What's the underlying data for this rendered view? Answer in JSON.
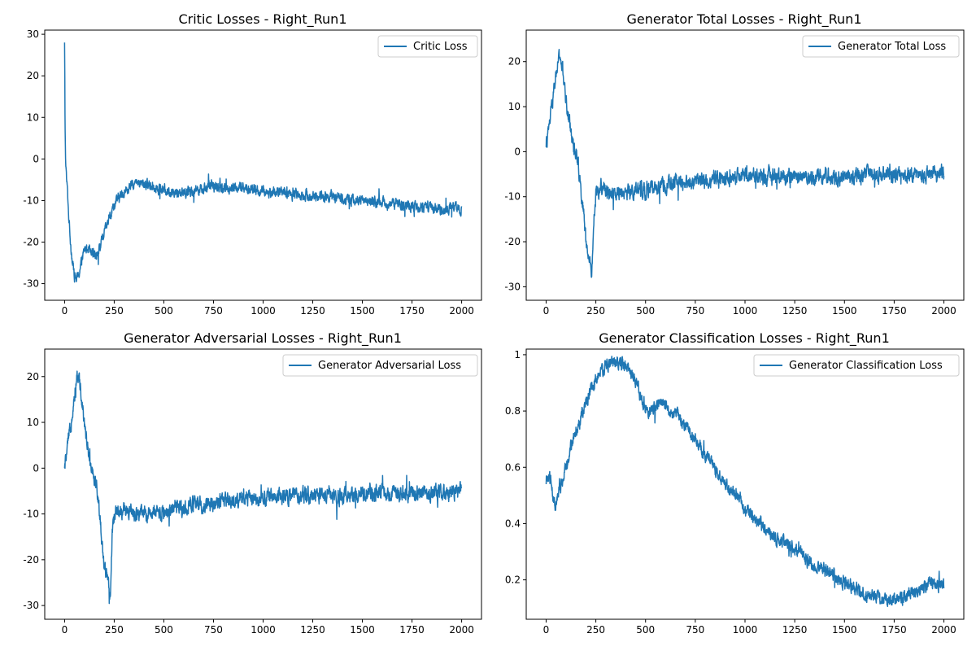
{
  "colors": {
    "series": "#1f77b4",
    "axes": "#000000",
    "legend_border": "#cccccc"
  },
  "chart_data": [
    {
      "type": "line",
      "title": "Critic Losses - Right_Run1",
      "xlabel": "",
      "ylabel": "",
      "xlim": [
        -100,
        2100
      ],
      "ylim": [
        -34,
        31
      ],
      "xticks": [
        0,
        250,
        500,
        750,
        1000,
        1250,
        1500,
        1750,
        2000
      ],
      "yticks": [
        -30,
        -20,
        -10,
        0,
        10,
        20,
        30
      ],
      "grid": false,
      "legend": "top-right",
      "series": [
        {
          "name": "Critic Loss",
          "noise": 1.2,
          "x": [
            0,
            2,
            5,
            10,
            15,
            20,
            30,
            40,
            50,
            60,
            70,
            80,
            90,
            100,
            120,
            140,
            160,
            180,
            200,
            220,
            250,
            280,
            300,
            350,
            400,
            450,
            500,
            550,
            600,
            650,
            700,
            750,
            800,
            850,
            900,
            950,
            1000,
            1050,
            1100,
            1150,
            1200,
            1250,
            1300,
            1350,
            1400,
            1450,
            1500,
            1550,
            1600,
            1650,
            1700,
            1750,
            1800,
            1850,
            1900,
            1950,
            2000
          ],
          "y": [
            28,
            10,
            0,
            -5,
            -8,
            -13,
            -20,
            -25,
            -28,
            -29,
            -28,
            -26,
            -24,
            -22,
            -21,
            -22,
            -23,
            -21,
            -18,
            -15,
            -11,
            -9,
            -8,
            -6,
            -6,
            -6.5,
            -7.5,
            -8,
            -8,
            -7.5,
            -7,
            -6.5,
            -7,
            -7,
            -7,
            -7.5,
            -8,
            -8,
            -8,
            -8.5,
            -8.5,
            -9,
            -9,
            -9,
            -9.5,
            -10,
            -10,
            -10,
            -10.5,
            -11,
            -11,
            -11.5,
            -11.5,
            -12,
            -12,
            -12,
            -12
          ]
        }
      ]
    },
    {
      "type": "line",
      "title": "Generator Total Losses - Right_Run1",
      "xlabel": "",
      "ylabel": "",
      "xlim": [
        -100,
        2100
      ],
      "ylim": [
        -33,
        27
      ],
      "xticks": [
        0,
        250,
        500,
        750,
        1000,
        1250,
        1500,
        1750,
        2000
      ],
      "yticks": [
        -30,
        -20,
        -10,
        0,
        10,
        20
      ],
      "grid": false,
      "legend": "top-right",
      "series": [
        {
          "name": "Generator Total Loss",
          "noise": 1.6,
          "x": [
            0,
            10,
            20,
            30,
            40,
            50,
            60,
            70,
            80,
            90,
            100,
            110,
            120,
            130,
            140,
            150,
            160,
            170,
            180,
            190,
            200,
            210,
            220,
            230,
            240,
            250,
            280,
            300,
            350,
            400,
            450,
            500,
            550,
            600,
            650,
            700,
            750,
            800,
            850,
            900,
            950,
            1000,
            1100,
            1200,
            1300,
            1400,
            1500,
            1600,
            1700,
            1800,
            1900,
            2000
          ],
          "y": [
            1,
            4,
            7,
            10,
            14,
            17,
            20,
            21,
            19,
            15,
            11,
            9,
            6,
            3,
            1,
            0,
            -2,
            -6,
            -10,
            -15,
            -20,
            -23,
            -25,
            -27,
            -15,
            -9,
            -8,
            -8.5,
            -9,
            -9,
            -9,
            -8.5,
            -8,
            -7.5,
            -7,
            -7,
            -6.5,
            -6.5,
            -6,
            -6,
            -6,
            -5.5,
            -5.5,
            -5.5,
            -5.5,
            -5.5,
            -5.5,
            -5.5,
            -5,
            -5,
            -5,
            -4.5
          ]
        }
      ]
    },
    {
      "type": "line",
      "title": "Generator Adversarial Losses - Right_Run1",
      "xlabel": "",
      "ylabel": "",
      "xlim": [
        -100,
        2100
      ],
      "ylim": [
        -33,
        26
      ],
      "xticks": [
        0,
        250,
        500,
        750,
        1000,
        1250,
        1500,
        1750,
        2000
      ],
      "yticks": [
        -30,
        -20,
        -10,
        0,
        10,
        20
      ],
      "grid": false,
      "legend": "top-right",
      "series": [
        {
          "name": "Generator Adversarial Loss",
          "noise": 1.6,
          "x": [
            0,
            10,
            20,
            30,
            40,
            50,
            60,
            70,
            80,
            90,
            100,
            110,
            120,
            130,
            140,
            150,
            160,
            170,
            180,
            190,
            200,
            210,
            220,
            230,
            240,
            250,
            280,
            300,
            350,
            400,
            450,
            500,
            550,
            600,
            650,
            700,
            750,
            800,
            850,
            900,
            950,
            1000,
            1100,
            1200,
            1300,
            1400,
            1500,
            1600,
            1700,
            1800,
            1900,
            2000
          ],
          "y": [
            0,
            3,
            6,
            9,
            13,
            16,
            19,
            20,
            18,
            14,
            10,
            7,
            4,
            1,
            0,
            -2,
            -4,
            -7,
            -12,
            -17,
            -21,
            -23,
            -26,
            -28,
            -15,
            -10,
            -9,
            -9.5,
            -10,
            -10,
            -10,
            -9.5,
            -9,
            -8.5,
            -8,
            -8,
            -7.5,
            -7.5,
            -7,
            -7,
            -6.5,
            -6.5,
            -6,
            -6,
            -6,
            -6,
            -5.5,
            -5.5,
            -5.5,
            -5.5,
            -5.5,
            -5
          ]
        }
      ]
    },
    {
      "type": "line",
      "title": "Generator Classification Losses - Right_Run1",
      "xlabel": "",
      "ylabel": "",
      "xlim": [
        -100,
        2100
      ],
      "ylim": [
        0.06,
        1.02
      ],
      "xticks": [
        0,
        250,
        500,
        750,
        1000,
        1250,
        1500,
        1750,
        2000
      ],
      "yticks": [
        0.2,
        0.4,
        0.6,
        0.8,
        1.0
      ],
      "grid": false,
      "legend": "top-right",
      "series": [
        {
          "name": "Generator Classification Loss",
          "noise": 0.022,
          "x": [
            0,
            10,
            20,
            30,
            40,
            50,
            60,
            80,
            100,
            120,
            150,
            180,
            200,
            230,
            250,
            280,
            300,
            330,
            350,
            380,
            400,
            420,
            440,
            460,
            480,
            500,
            520,
            550,
            580,
            600,
            650,
            700,
            750,
            800,
            850,
            900,
            950,
            1000,
            1050,
            1100,
            1150,
            1200,
            1250,
            1300,
            1350,
            1400,
            1450,
            1500,
            1550,
            1600,
            1650,
            1700,
            1750,
            1800,
            1850,
            1900,
            1950,
            2000
          ],
          "y": [
            0.54,
            0.57,
            0.56,
            0.52,
            0.47,
            0.46,
            0.5,
            0.55,
            0.6,
            0.66,
            0.73,
            0.79,
            0.83,
            0.88,
            0.91,
            0.94,
            0.96,
            0.97,
            0.97,
            0.97,
            0.96,
            0.94,
            0.92,
            0.88,
            0.84,
            0.8,
            0.8,
            0.81,
            0.83,
            0.82,
            0.79,
            0.75,
            0.7,
            0.64,
            0.59,
            0.54,
            0.5,
            0.45,
            0.42,
            0.38,
            0.35,
            0.33,
            0.3,
            0.28,
            0.25,
            0.23,
            0.21,
            0.19,
            0.17,
            0.15,
            0.14,
            0.13,
            0.13,
            0.14,
            0.16,
            0.18,
            0.19,
            0.18
          ]
        }
      ]
    }
  ]
}
